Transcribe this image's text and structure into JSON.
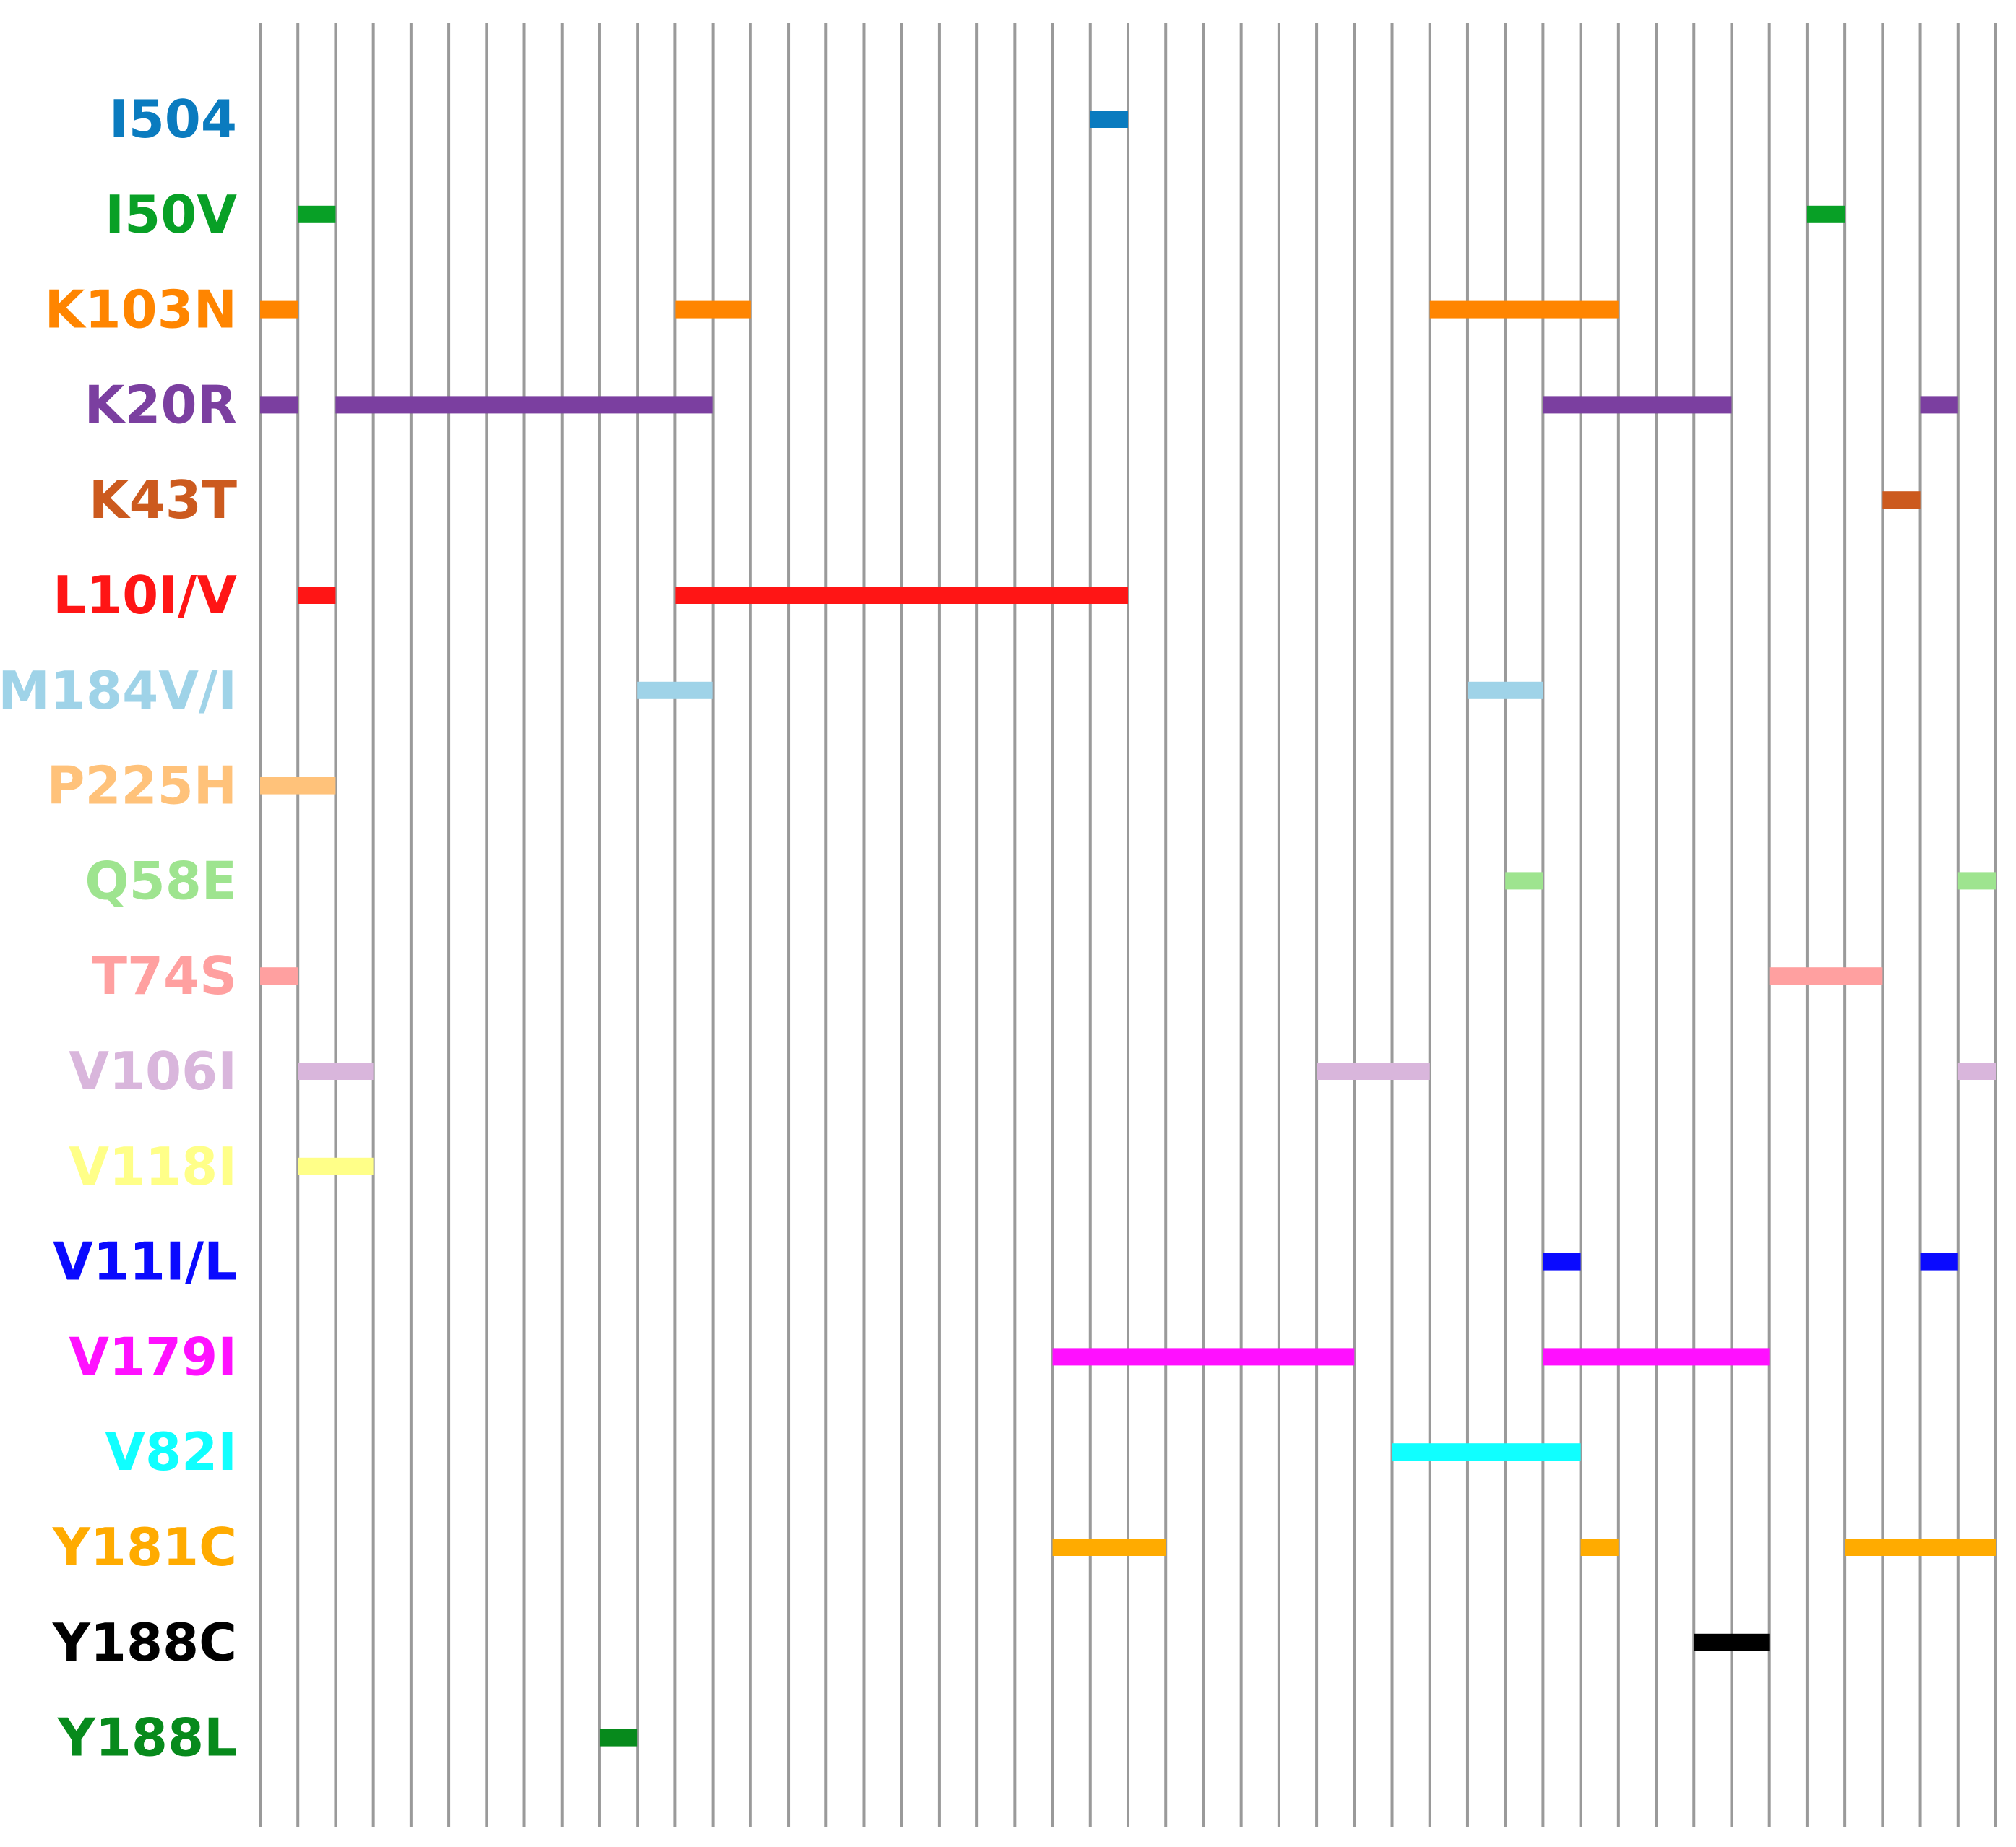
{
  "chart_data": {
    "type": "timeline",
    "title": "",
    "xlabel": "",
    "ylabel": "",
    "grid": true,
    "columns": 46,
    "xlim": [
      0,
      46
    ],
    "rows": [
      {
        "label": "I504",
        "color": "#0a7bbf",
        "segments": [
          [
            22,
            23
          ]
        ]
      },
      {
        "label": "I50V",
        "color": "#08a026",
        "segments": [
          [
            1,
            2
          ],
          [
            41,
            42
          ]
        ]
      },
      {
        "label": "K103N",
        "color": "#ff8500",
        "segments": [
          [
            0,
            1
          ],
          [
            11,
            13
          ],
          [
            31,
            36
          ]
        ]
      },
      {
        "label": "K20R",
        "color": "#7b3fa0",
        "segments": [
          [
            0,
            1
          ],
          [
            2,
            12
          ],
          [
            34,
            39
          ],
          [
            44,
            45
          ]
        ]
      },
      {
        "label": "K43T",
        "color": "#cc5a1e",
        "segments": [
          [
            43,
            44
          ]
        ]
      },
      {
        "label": "L10I/V",
        "color": "#ff1515",
        "segments": [
          [
            1,
            2
          ],
          [
            11,
            23
          ]
        ]
      },
      {
        "label": "M184V/I",
        "color": "#9fd3e8",
        "segments": [
          [
            10,
            12
          ],
          [
            32,
            34
          ]
        ]
      },
      {
        "label": "P225H",
        "color": "#ffc27a",
        "segments": [
          [
            0,
            2
          ]
        ]
      },
      {
        "label": "Q58E",
        "color": "#9ee48f",
        "segments": [
          [
            33,
            34
          ],
          [
            45,
            46
          ]
        ]
      },
      {
        "label": "T74S",
        "color": "#ffa0a0",
        "segments": [
          [
            0,
            1
          ],
          [
            40,
            43
          ]
        ]
      },
      {
        "label": "V106I",
        "color": "#d9b6dc",
        "segments": [
          [
            1,
            3
          ],
          [
            28,
            31
          ],
          [
            45,
            46
          ]
        ]
      },
      {
        "label": "V118I",
        "color": "#ffff88",
        "segments": [
          [
            1,
            3
          ]
        ]
      },
      {
        "label": "V11I/L",
        "color": "#0a0aff",
        "segments": [
          [
            34,
            35
          ],
          [
            44,
            45
          ]
        ]
      },
      {
        "label": "V179I",
        "color": "#ff10ff",
        "segments": [
          [
            21,
            29
          ],
          [
            34,
            40
          ]
        ]
      },
      {
        "label": "V82I",
        "color": "#10ffff",
        "segments": [
          [
            30,
            35
          ]
        ]
      },
      {
        "label": "Y181C",
        "color": "#ffab00",
        "segments": [
          [
            21,
            24
          ],
          [
            35,
            36
          ],
          [
            42,
            46
          ]
        ]
      },
      {
        "label": "Y188C",
        "color": "#000000",
        "segments": [
          [
            38,
            40
          ]
        ]
      },
      {
        "label": "Y188L",
        "color": "#078a1c",
        "segments": [
          [
            9,
            10
          ]
        ]
      }
    ]
  }
}
